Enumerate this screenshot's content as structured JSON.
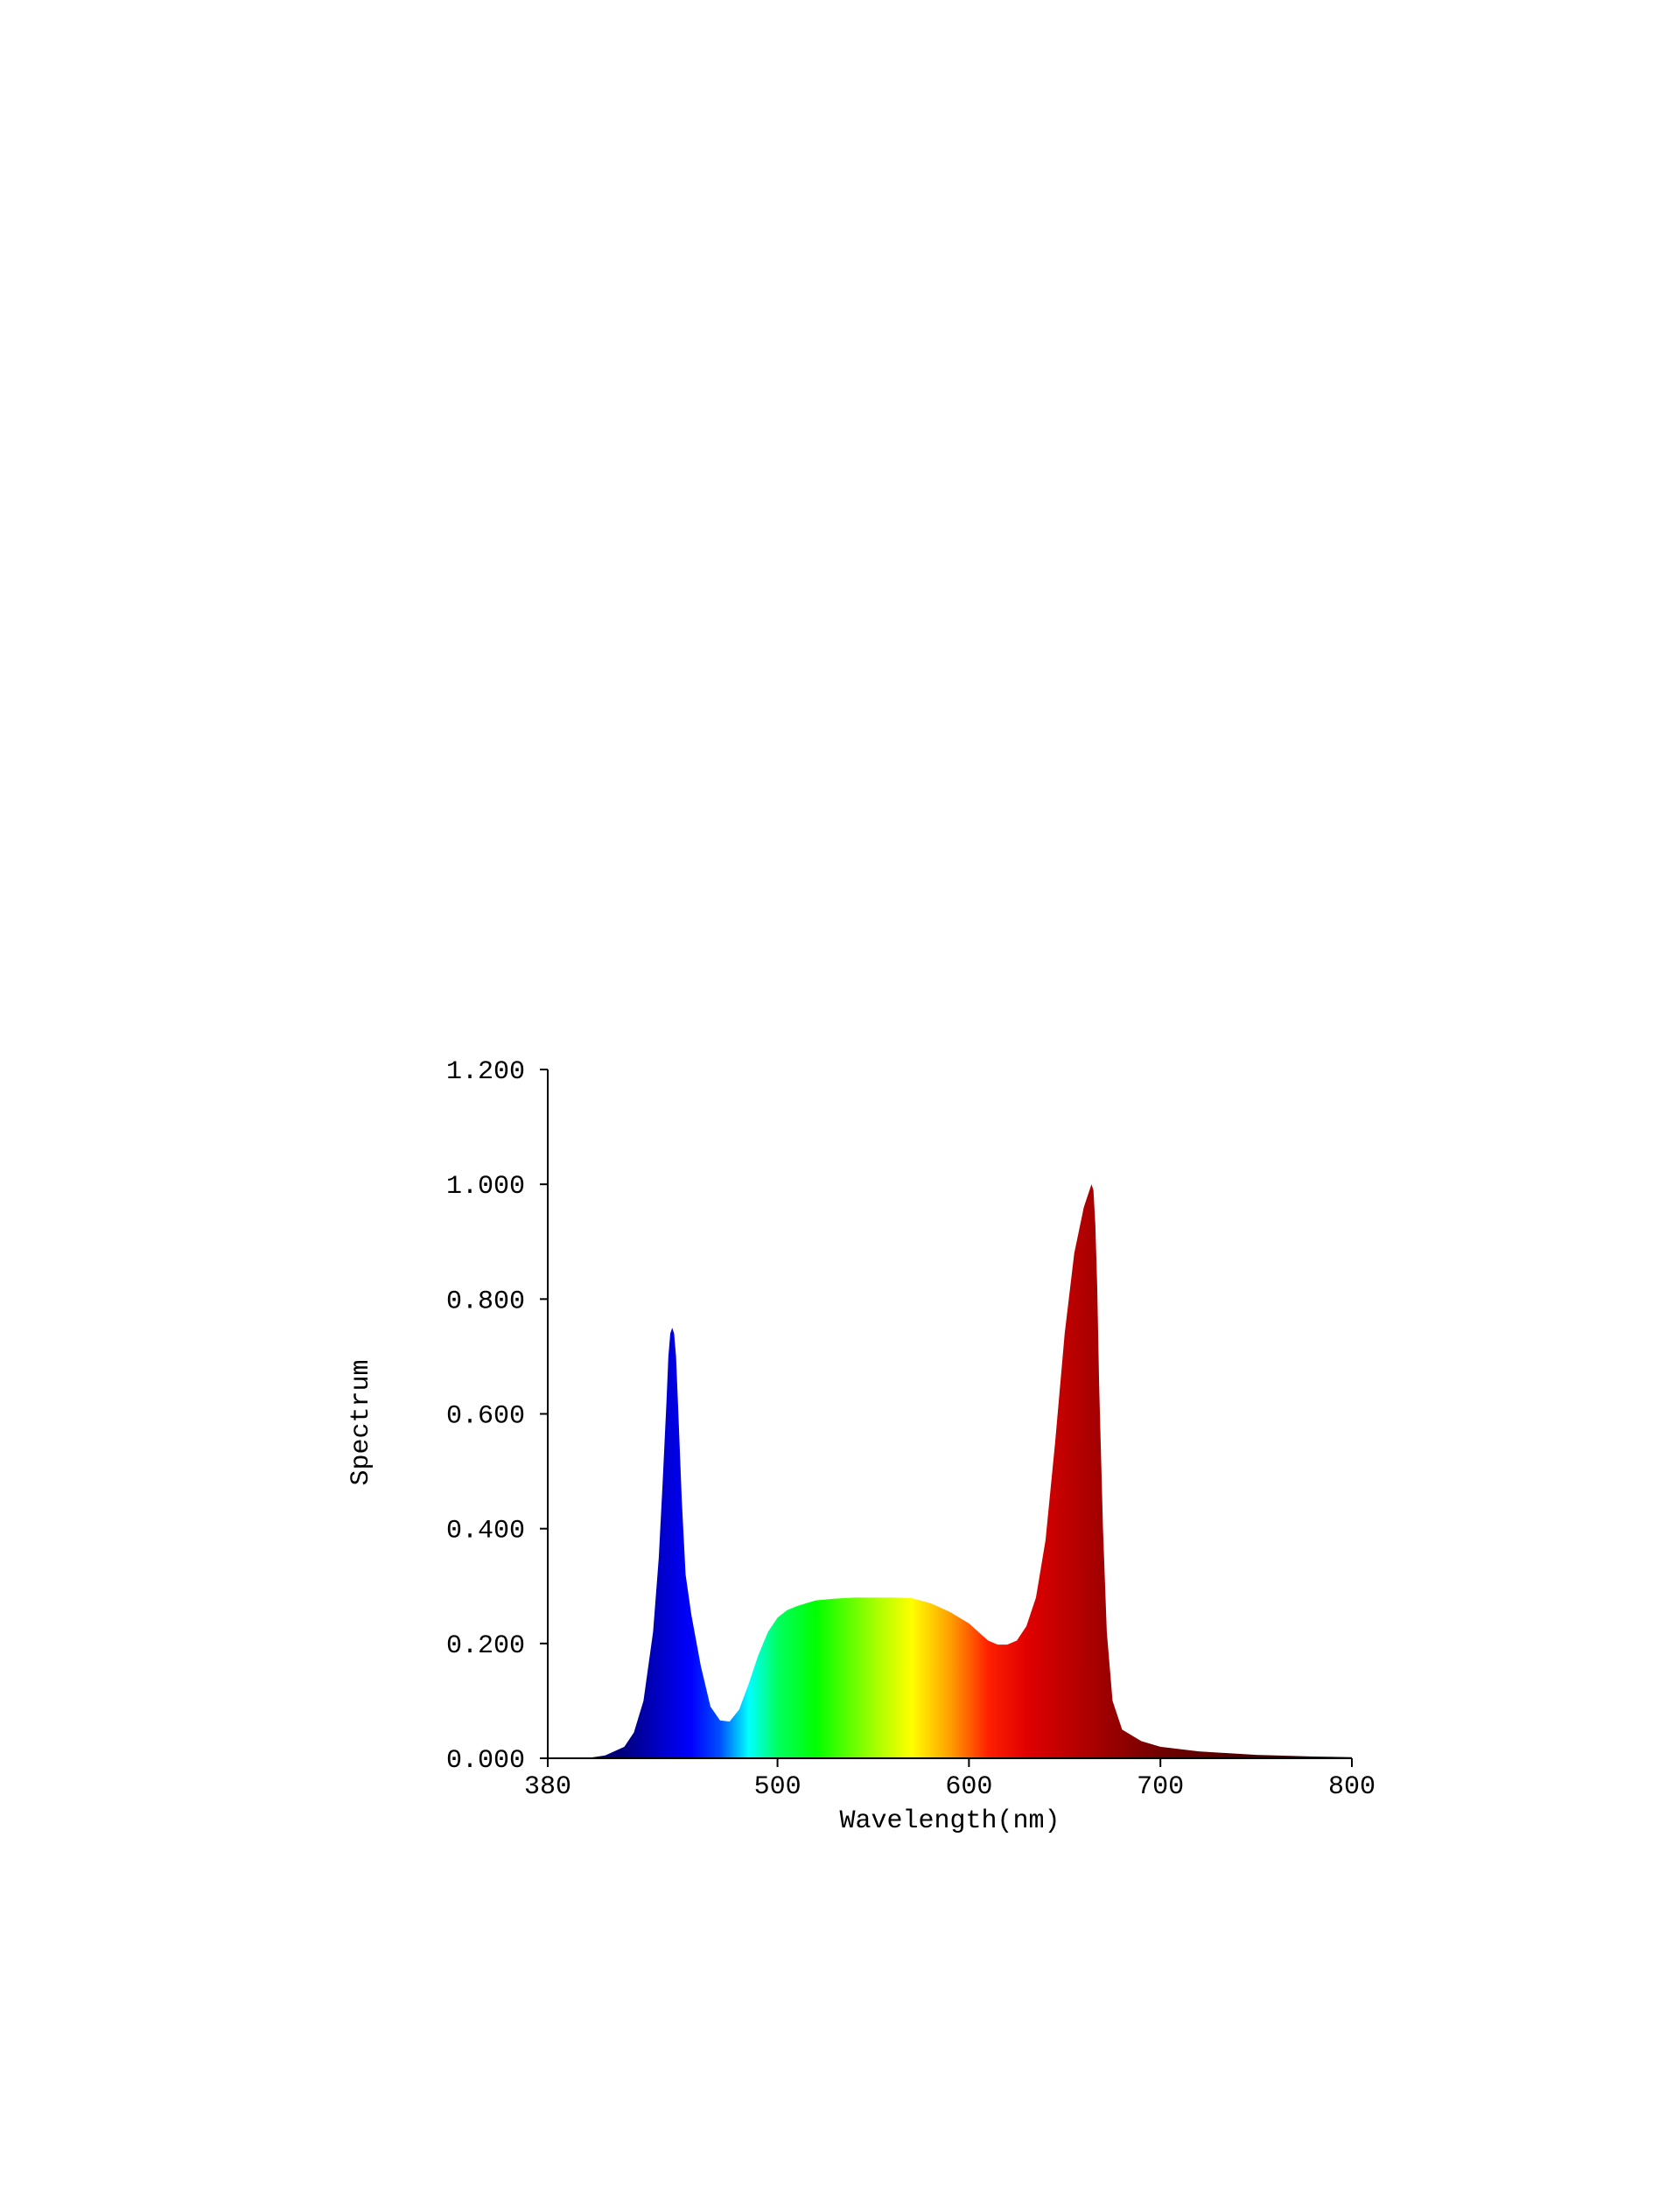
{
  "chart_data": {
    "type": "area",
    "title": "",
    "xlabel": "Wavelength(nm)",
    "ylabel": "Spectrum",
    "xlim": [
      380,
      800
    ],
    "ylim": [
      0,
      1.2
    ],
    "x_ticks": [
      {
        "value": 380,
        "label": "380"
      },
      {
        "value": 500,
        "label": "500"
      },
      {
        "value": 600,
        "label": "600"
      },
      {
        "value": 700,
        "label": "700"
      },
      {
        "value": 800,
        "label": "800"
      }
    ],
    "y_ticks": [
      {
        "value": 0.0,
        "label": "0.000"
      },
      {
        "value": 0.2,
        "label": "0.200"
      },
      {
        "value": 0.4,
        "label": "0.400"
      },
      {
        "value": 0.6,
        "label": "0.600"
      },
      {
        "value": 0.8,
        "label": "0.800"
      },
      {
        "value": 1.0,
        "label": "1.000"
      },
      {
        "value": 1.2,
        "label": "1.200"
      }
    ],
    "grid": false,
    "fill": "spectral-rainbow",
    "x": [
      400,
      410,
      420,
      425,
      430,
      435,
      438,
      440,
      442,
      443,
      444,
      445,
      446,
      447,
      448,
      450,
      452,
      455,
      460,
      465,
      470,
      475,
      480,
      485,
      490,
      495,
      500,
      505,
      510,
      515,
      520,
      530,
      540,
      550,
      560,
      570,
      580,
      590,
      600,
      605,
      610,
      615,
      620,
      625,
      630,
      635,
      640,
      645,
      650,
      655,
      660,
      662,
      664,
      665,
      666,
      667,
      668,
      670,
      672,
      675,
      680,
      690,
      700,
      720,
      750,
      780,
      800
    ],
    "y": [
      0.0,
      0.005,
      0.02,
      0.045,
      0.1,
      0.22,
      0.35,
      0.48,
      0.62,
      0.7,
      0.74,
      0.75,
      0.74,
      0.7,
      0.62,
      0.45,
      0.32,
      0.25,
      0.16,
      0.09,
      0.066,
      0.064,
      0.085,
      0.13,
      0.18,
      0.22,
      0.245,
      0.258,
      0.265,
      0.27,
      0.275,
      0.278,
      0.28,
      0.28,
      0.28,
      0.279,
      0.27,
      0.255,
      0.235,
      0.22,
      0.205,
      0.198,
      0.198,
      0.205,
      0.23,
      0.28,
      0.38,
      0.55,
      0.74,
      0.88,
      0.96,
      0.98,
      1.0,
      0.99,
      0.93,
      0.82,
      0.65,
      0.4,
      0.22,
      0.1,
      0.05,
      0.03,
      0.02,
      0.012,
      0.006,
      0.003,
      0.002
    ]
  }
}
